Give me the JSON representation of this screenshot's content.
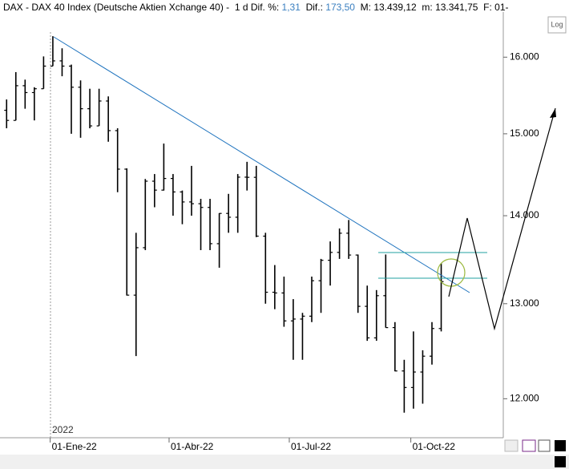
{
  "header": {
    "symbol": "DAX - DAX 40 Index (Deutsche Aktien Xchange 40) -",
    "interval": "1 d",
    "pct_label": "Dif. %:",
    "pct_value": "1,31",
    "dif_label": "Dif.:",
    "dif_value": "173,50",
    "max_label": "M:",
    "max_value": "13.439,12",
    "min_label": "m:",
    "min_value": "13.341,75",
    "date_label": "F: 01-",
    "log_button": "Log"
  },
  "chart_data": {
    "type": "ohlc",
    "color": "#000000",
    "log_scale": true,
    "grid": false,
    "year_label": "2022",
    "x": [
      "2021-11-29",
      "2021-12-06",
      "2021-12-13",
      "2021-12-20",
      "2021-12-27",
      "2022-01-03",
      "2022-01-10",
      "2022-01-17",
      "2022-01-24",
      "2022-01-31",
      "2022-02-07",
      "2022-02-14",
      "2022-02-21",
      "2022-02-28",
      "2022-03-07",
      "2022-03-14",
      "2022-03-21",
      "2022-03-28",
      "2022-04-04",
      "2022-04-11",
      "2022-04-18",
      "2022-04-25",
      "2022-05-02",
      "2022-05-09",
      "2022-05-16",
      "2022-05-23",
      "2022-05-30",
      "2022-06-06",
      "2022-06-13",
      "2022-06-20",
      "2022-06-27",
      "2022-07-04",
      "2022-07-11",
      "2022-07-18",
      "2022-07-25",
      "2022-08-01",
      "2022-08-08",
      "2022-08-15",
      "2022-08-22",
      "2022-08-29",
      "2022-09-05",
      "2022-09-12",
      "2022-09-19",
      "2022-09-26",
      "2022-10-03",
      "2022-10-10",
      "2022-10-17",
      "2022-10-24"
    ],
    "open": [
      15300,
      15170,
      15620,
      15530,
      15580,
      15880,
      15950,
      15880,
      15600,
      15320,
      15100,
      15420,
      15040,
      14560,
      13094,
      13628,
      14413,
      14305,
      14446,
      14283,
      14163,
      14142,
      14098,
      13674,
      14027,
      13982,
      14462,
      14460,
      13761,
      13126,
      13118,
      12813,
      12833,
      12864,
      13254,
      13484,
      13574,
      13795,
      13544,
      12971,
      12631,
      13088,
      12741,
      12284,
      12114,
      12273,
      12438,
      12731
    ],
    "high": [
      15440,
      15800,
      15700,
      15600,
      16010,
      16285,
      16120,
      15900,
      15690,
      15580,
      15580,
      15480,
      15070,
      14570,
      13800,
      14440,
      14500,
      14877,
      14500,
      14300,
      14600,
      14200,
      14200,
      14030,
      14260,
      14500,
      14650,
      14600,
      13800,
      13430,
      13300,
      13050,
      12900,
      13300,
      13500,
      13700,
      13850,
      13950,
      13550,
      13200,
      13150,
      13550,
      12800,
      12400,
      12700,
      12500,
      12800,
      13450
    ],
    "low": [
      15070,
      15170,
      15320,
      15170,
      15580,
      15880,
      15745,
      15000,
      14950,
      15070,
      15100,
      14900,
      14280,
      13090,
      12439,
      13600,
      14100,
      14300,
      14000,
      13900,
      14000,
      13600,
      13600,
      13400,
      13800,
      13800,
      14300,
      13750,
      13000,
      12940,
      12750,
      12400,
      12400,
      12800,
      12900,
      13200,
      13500,
      13500,
      12900,
      12600,
      12600,
      12740,
      12280,
      11860,
      11900,
      11950,
      12350,
      12700
    ],
    "close": [
      15170,
      15620,
      15530,
      15580,
      15880,
      15950,
      15880,
      15600,
      15320,
      15100,
      15420,
      15040,
      14560,
      13094,
      13628,
      14413,
      14305,
      14446,
      14283,
      14163,
      14142,
      14098,
      13674,
      14027,
      13982,
      14462,
      14460,
      13761,
      13126,
      13118,
      12813,
      12833,
      12864,
      13254,
      13484,
      13574,
      13795,
      13544,
      12971,
      12631,
      13088,
      12741,
      12284,
      12114,
      12273,
      12438,
      12731,
      13244
    ],
    "xlim": [
      "2021-11-24",
      "2022-12-10"
    ],
    "xticks": [
      {
        "value": "2022-01-01",
        "label": "01-Ene-22"
      },
      {
        "value": "2022-04-01",
        "label": "01-Abr-22"
      },
      {
        "value": "2022-07-01",
        "label": "01-Jul-22"
      },
      {
        "value": "2022-10-01",
        "label": "01-Oct-22"
      }
    ],
    "ylim": [
      11620,
      16620
    ],
    "yticks": [
      {
        "value": 12000,
        "label": "12.000"
      },
      {
        "value": 13000,
        "label": "13.000"
      },
      {
        "value": 14000,
        "label": "14.000"
      },
      {
        "value": 15000,
        "label": "15.000"
      },
      {
        "value": 16000,
        "label": "16.000"
      }
    ]
  }
}
